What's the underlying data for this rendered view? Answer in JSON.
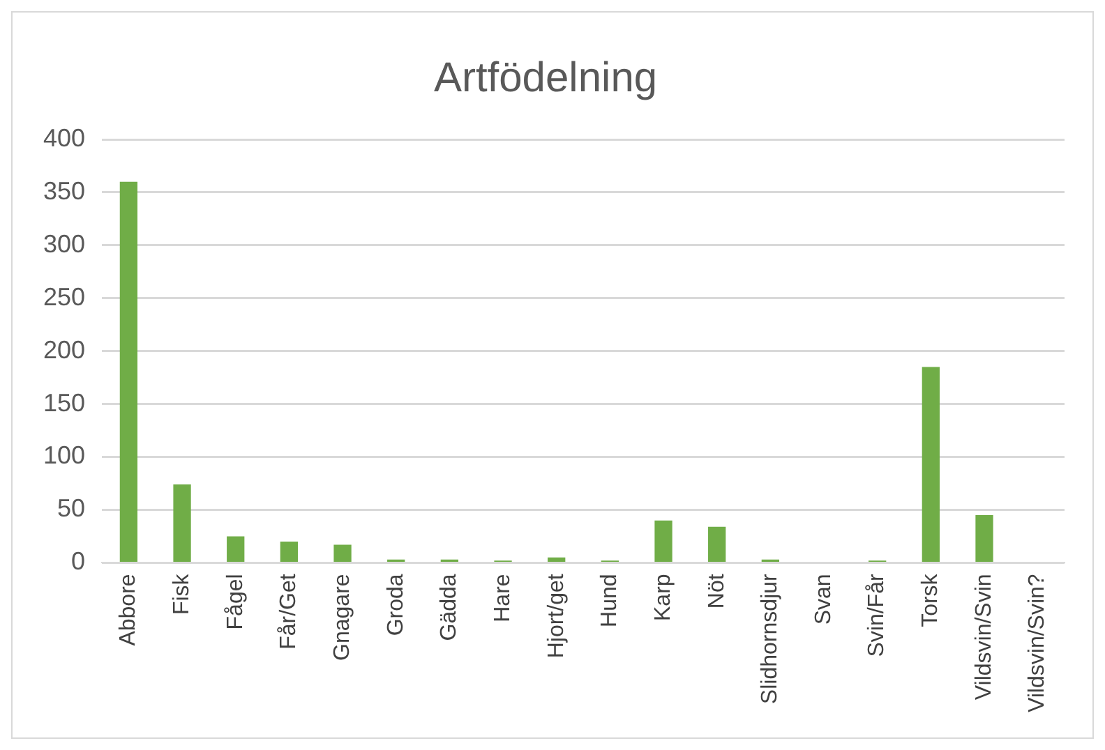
{
  "chart_data": {
    "type": "bar",
    "title": "Artfödelning",
    "categories": [
      "Abbore",
      "Fisk",
      "Fågel",
      "Får/Get",
      "Gnagare",
      "Groda",
      "Gädda",
      "Hare",
      "Hjort/get",
      "Hund",
      "Karp",
      "Nöt",
      "Slidhornsdjur",
      "Svan",
      "Svin/Får",
      "Torsk",
      "Vildsvin/Svin",
      "Vildsvin/Svin?"
    ],
    "values": [
      360,
      74,
      25,
      20,
      17,
      3,
      3,
      2,
      5,
      2,
      40,
      34,
      3,
      0,
      2,
      185,
      45,
      0
    ],
    "color": "#70ad47",
    "ylim": [
      0,
      400
    ],
    "yticks": [
      0,
      50,
      100,
      150,
      200,
      250,
      300,
      350,
      400
    ],
    "grid": "y",
    "legend": false
  }
}
